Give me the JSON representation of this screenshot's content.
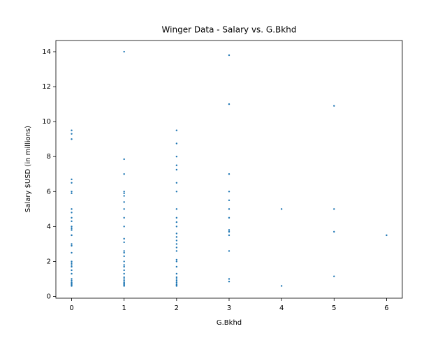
{
  "chart_data": {
    "type": "scatter",
    "title": "Winger Data - Salary vs. G.Bkhd",
    "x_label": "G.Bkhd",
    "y_label": "Salary $USD (in millions)",
    "color": "#1f77b4",
    "x": [
      0,
      0,
      0,
      0,
      0,
      0,
      0,
      0,
      0,
      0,
      0,
      0,
      0,
      0,
      0,
      0,
      0,
      0,
      0,
      0,
      0,
      0,
      0,
      0,
      0,
      0,
      0,
      0,
      0,
      0,
      0,
      0,
      1,
      1,
      1,
      1,
      1,
      1,
      1,
      1,
      1,
      1,
      1,
      1,
      1,
      1,
      1,
      1,
      1,
      1,
      1,
      1,
      1,
      1,
      1,
      1,
      1,
      1,
      1,
      1,
      2,
      2,
      2,
      2,
      2,
      2,
      2,
      2,
      2,
      2,
      2,
      2,
      2,
      2,
      2,
      2,
      2,
      2,
      2,
      2,
      2,
      2,
      2,
      2,
      2,
      2,
      2,
      2,
      3,
      3,
      3,
      3,
      3,
      3,
      3,
      3,
      3,
      3,
      3,
      3,
      3,
      4,
      4,
      5,
      5,
      5,
      5,
      6
    ],
    "values": [
      9.5,
      9.3,
      9.0,
      6.7,
      6.5,
      6.0,
      5.9,
      5.0,
      4.8,
      4.5,
      4.3,
      4.0,
      3.9,
      3.8,
      3.5,
      3.5,
      3.0,
      2.9,
      2.5,
      2.0,
      1.9,
      1.8,
      1.7,
      1.5,
      1.3,
      1.0,
      0.9,
      0.8,
      0.75,
      0.7,
      0.65,
      0.6,
      14.0,
      7.85,
      7.0,
      6.0,
      5.9,
      5.75,
      5.4,
      5.0,
      4.5,
      4.0,
      3.3,
      3.1,
      2.6,
      2.5,
      2.3,
      2.0,
      1.8,
      1.7,
      1.5,
      1.3,
      1.1,
      1.0,
      0.9,
      0.8,
      0.75,
      0.7,
      0.65,
      0.6,
      9.5,
      8.75,
      8.0,
      7.5,
      7.25,
      6.5,
      6.0,
      5.0,
      4.5,
      4.25,
      4.0,
      3.6,
      3.4,
      3.2,
      3.0,
      2.8,
      2.6,
      2.1,
      2.0,
      1.7,
      1.3,
      1.1,
      1.0,
      0.9,
      0.8,
      0.7,
      0.65,
      0.6,
      13.8,
      11.0,
      7.0,
      6.0,
      5.5,
      5.0,
      4.5,
      3.8,
      3.7,
      3.5,
      2.6,
      1.0,
      0.85,
      5.0,
      0.6,
      10.9,
      5.0,
      3.7,
      1.15,
      3.5
    ],
    "xlim": [
      -0.3,
      6.3
    ],
    "ylim": [
      -0.1,
      14.64
    ],
    "xticks": [
      0,
      1,
      2,
      3,
      4,
      5,
      6
    ],
    "yticks": [
      0,
      2,
      4,
      6,
      8,
      10,
      12,
      14
    ]
  }
}
